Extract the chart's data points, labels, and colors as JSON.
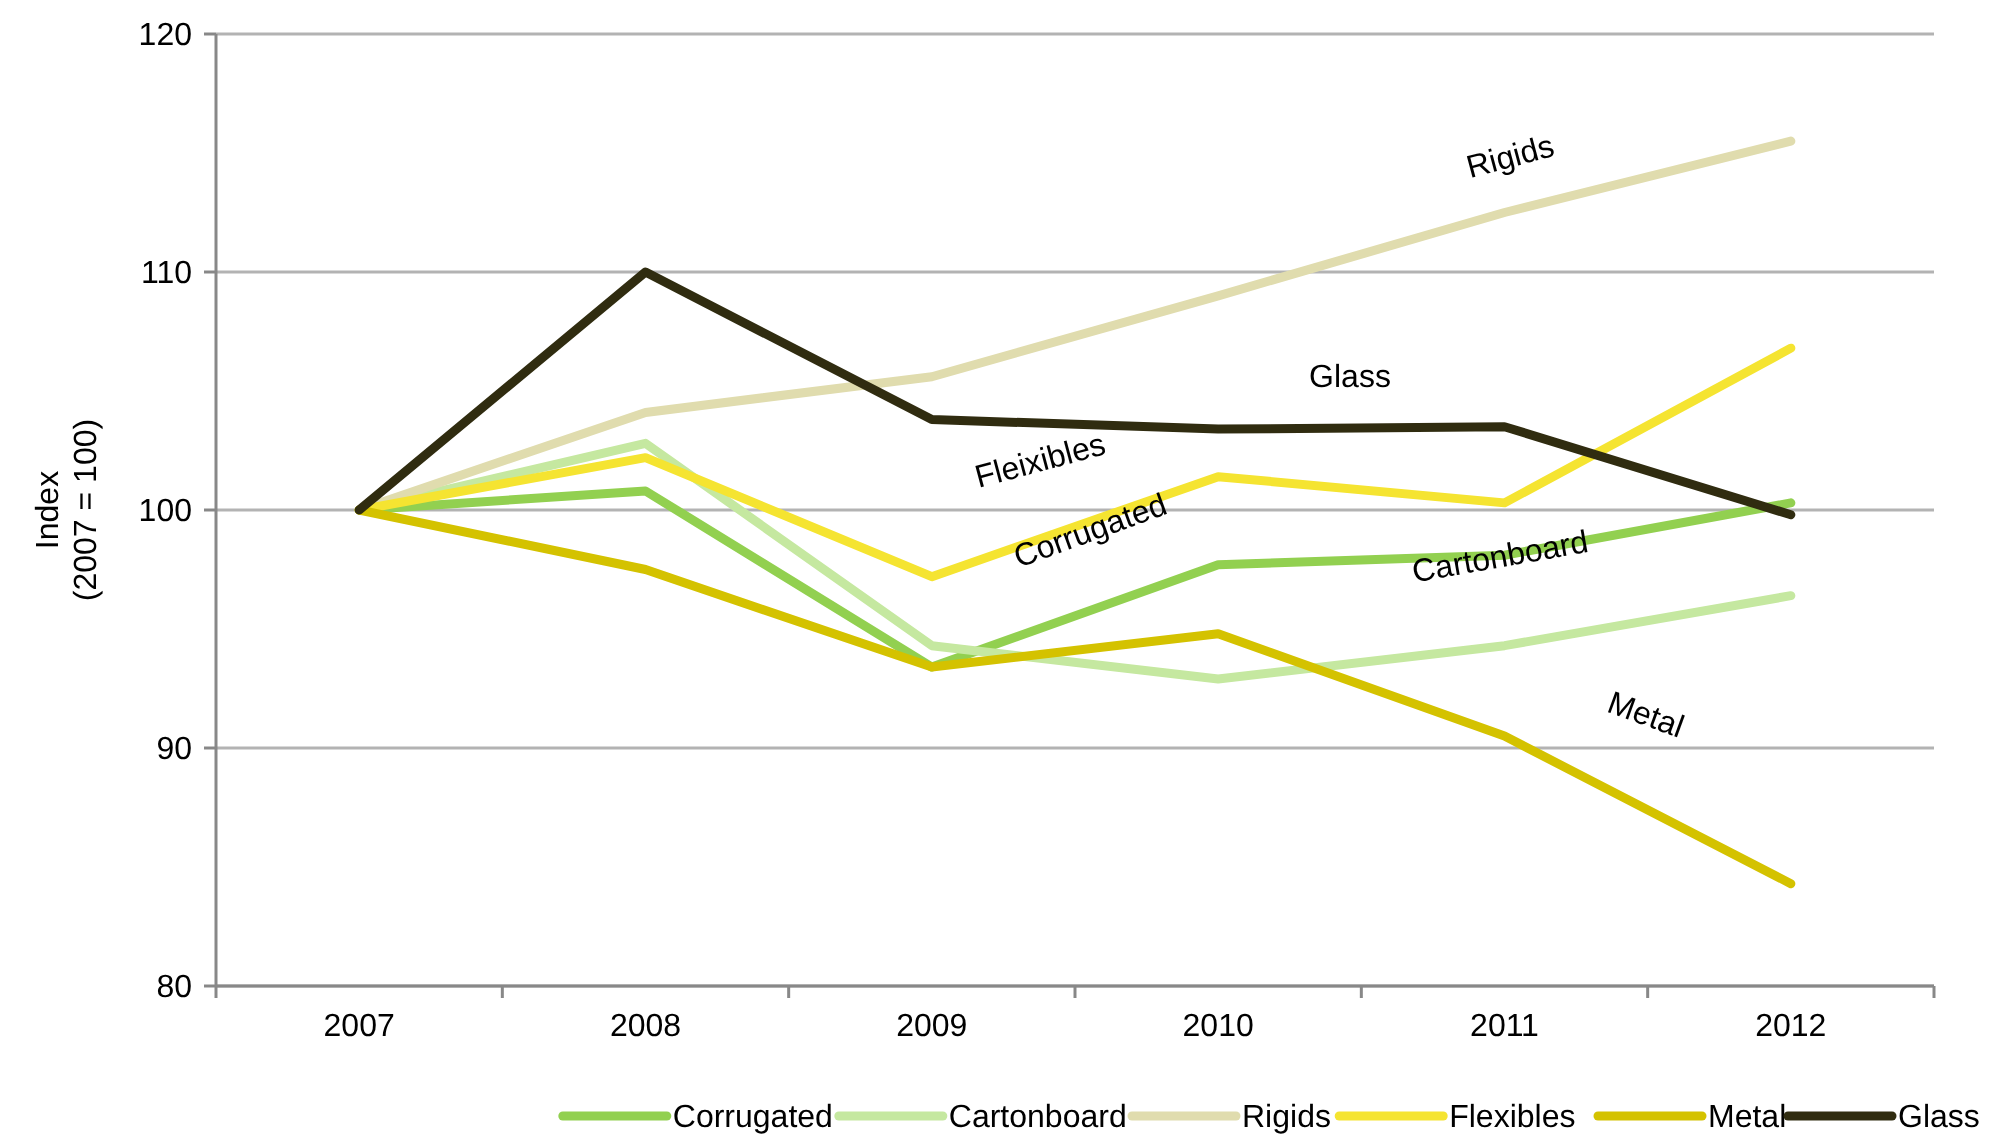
{
  "chart_data": {
    "type": "line",
    "ylabel": "Index\n(2007 = 100)",
    "categories": [
      "2007",
      "2008",
      "2009",
      "2010",
      "2011",
      "2012"
    ],
    "ylim": [
      80,
      120
    ],
    "yticks": [
      80,
      90,
      100,
      110,
      120
    ],
    "grid": "y",
    "legend": "bottom",
    "marker": "none",
    "line_style": "solid",
    "series": [
      {
        "name": "Corrugated",
        "color": "#92d050",
        "values": [
          100,
          100.8,
          93.4,
          97.7,
          98.1,
          100.3
        ]
      },
      {
        "name": "Cartonboard",
        "color": "#c5e8a0",
        "values": [
          100,
          102.8,
          94.3,
          92.9,
          94.3,
          96.4
        ]
      },
      {
        "name": "Rigids",
        "color": "#e0dcae",
        "values": [
          100,
          104.1,
          105.6,
          109,
          112.5,
          115.5
        ]
      },
      {
        "name": "Flexibles",
        "color": "#f5e431",
        "values": [
          100,
          102.2,
          97.2,
          101.4,
          100.3,
          106.8
        ]
      },
      {
        "name": "Metal",
        "color": "#d4c200",
        "values": [
          100,
          97.5,
          93.4,
          94.8,
          90.5,
          84.3
        ]
      },
      {
        "name": "Glass",
        "color": "#302c10",
        "values": [
          100,
          110,
          103.8,
          103.4,
          103.5,
          99.8
        ]
      }
    ],
    "annotations": [
      "Rigids",
      "Glass",
      "Fleixibles",
      "Corrugated",
      "Cartonboard",
      "Metal"
    ]
  }
}
